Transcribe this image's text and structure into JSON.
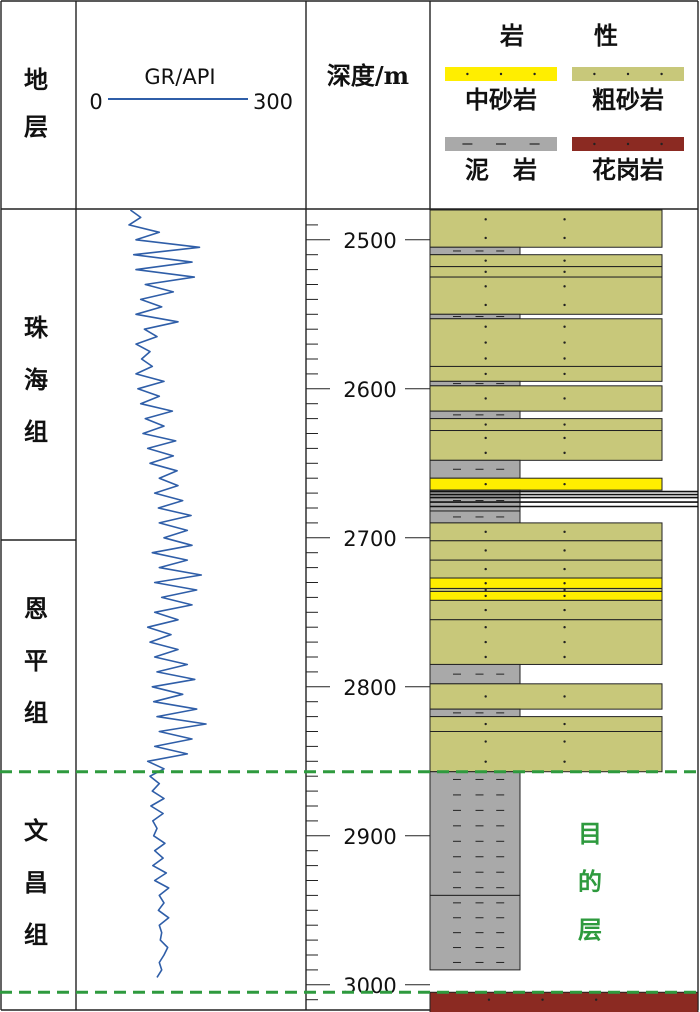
{
  "header": {
    "strata_label": [
      "地",
      "层"
    ],
    "gr_label": "GR/API",
    "gr_min": "0",
    "gr_max": "300",
    "depth_label": "深度/m",
    "lith_label": [
      "岩",
      "性"
    ]
  },
  "legend": [
    {
      "name": "中砂岩",
      "color": "#ffee00",
      "pattern": "dots"
    },
    {
      "name": "粗砂岩",
      "color": "#c8c87a",
      "pattern": "dots"
    },
    {
      "name": "泥　岩",
      "color": "#a9a9a9",
      "pattern": "dashes"
    },
    {
      "name": "花岗岩",
      "color": "#8b2a22",
      "pattern": "dots"
    }
  ],
  "formations": [
    {
      "name": [
        "珠",
        "海",
        "组"
      ],
      "top": 2480,
      "bottom": 2707
    },
    {
      "name": [
        "恩",
        "平",
        "组"
      ],
      "top": 2707,
      "bottom": 2857
    },
    {
      "name": [
        "文",
        "昌",
        "组"
      ],
      "top": 2857,
      "bottom": 3005
    }
  ],
  "depth_axis": {
    "ticks": [
      "2500",
      "2600",
      "2700",
      "2800",
      "2900",
      "3000"
    ],
    "unit": "m",
    "range": [
      2480,
      3025
    ]
  },
  "boundaries": [
    2857,
    3005
  ],
  "target_label": [
    "目",
    "的",
    "层"
  ],
  "chart_data": {
    "type": "line",
    "title": "",
    "xlabel": "GR/API",
    "ylabel": "深度/m",
    "xlim": [
      0,
      300
    ],
    "ylim": [
      2480,
      3025
    ],
    "series": [
      {
        "name": "GR",
        "depth": [
          2480,
          2485,
          2490,
          2495,
          2500,
          2505,
          2510,
          2515,
          2520,
          2525,
          2530,
          2535,
          2540,
          2545,
          2550,
          2555,
          2560,
          2565,
          2570,
          2575,
          2580,
          2585,
          2590,
          2595,
          2600,
          2605,
          2610,
          2615,
          2620,
          2625,
          2630,
          2635,
          2640,
          2645,
          2650,
          2655,
          2660,
          2665,
          2670,
          2675,
          2680,
          2685,
          2690,
          2695,
          2700,
          2705,
          2710,
          2715,
          2720,
          2725,
          2730,
          2735,
          2740,
          2745,
          2750,
          2755,
          2760,
          2765,
          2770,
          2775,
          2780,
          2785,
          2790,
          2795,
          2800,
          2805,
          2810,
          2815,
          2820,
          2825,
          2830,
          2835,
          2840,
          2845,
          2850,
          2855,
          2860,
          2865,
          2870,
          2875,
          2880,
          2885,
          2890,
          2895,
          2900,
          2905,
          2910,
          2915,
          2920,
          2925,
          2930,
          2935,
          2940,
          2945,
          2950,
          2955,
          2960,
          2965,
          2970,
          2975,
          2980,
          2985,
          2990,
          2995
        ],
        "gr": [
          48,
          70,
          45,
          110,
          60,
          196,
          55,
          180,
          60,
          185,
          80,
          140,
          70,
          115,
          60,
          150,
          78,
          105,
          60,
          90,
          72,
          95,
          60,
          120,
          64,
          110,
          70,
          138,
          80,
          120,
          75,
          145,
          85,
          140,
          90,
          148,
          110,
          150,
          100,
          160,
          108,
          178,
          110,
          170,
          120,
          180,
          95,
          170,
          110,
          200,
          100,
          190,
          115,
          180,
          100,
          150,
          85,
          135,
          90,
          150,
          100,
          170,
          105,
          186,
          95,
          160,
          98,
          190,
          105,
          210,
          110,
          180,
          100,
          170,
          85,
          120,
          90,
          110,
          95,
          120,
          92,
          118,
          96,
          105,
          98,
          122,
          100,
          118,
          96,
          125,
          100,
          130,
          110,
          120,
          108,
          130,
          110,
          115,
          112,
          128,
          120,
          110,
          115,
          105
        ]
      }
    ]
  },
  "lithology": [
    {
      "top": 2480,
      "bottom": 2505,
      "rock": "粗砂岩"
    },
    {
      "top": 2505,
      "bottom": 2510,
      "rock": "泥岩"
    },
    {
      "top": 2510,
      "bottom": 2518,
      "rock": "粗砂岩"
    },
    {
      "top": 2518,
      "bottom": 2525,
      "rock": "粗砂岩"
    },
    {
      "top": 2525,
      "bottom": 2550,
      "rock": "粗砂岩"
    },
    {
      "top": 2550,
      "bottom": 2553,
      "rock": "泥岩"
    },
    {
      "top": 2553,
      "bottom": 2585,
      "rock": "粗砂岩"
    },
    {
      "top": 2585,
      "bottom": 2595,
      "rock": "粗砂岩"
    },
    {
      "top": 2595,
      "bottom": 2598,
      "rock": "泥岩"
    },
    {
      "top": 2598,
      "bottom": 2615,
      "rock": "粗砂岩"
    },
    {
      "top": 2615,
      "bottom": 2620,
      "rock": "泥岩"
    },
    {
      "top": 2620,
      "bottom": 2628,
      "rock": "粗砂岩"
    },
    {
      "top": 2628,
      "bottom": 2648,
      "rock": "粗砂岩"
    },
    {
      "top": 2648,
      "bottom": 2660,
      "rock": "泥岩"
    },
    {
      "top": 2660,
      "bottom": 2668,
      "rock": "中砂岩"
    },
    {
      "top": 2668,
      "bottom": 2682,
      "rock": "泥岩"
    },
    {
      "top": 2682,
      "bottom": 2690,
      "rock": "泥岩"
    },
    {
      "top": 2690,
      "bottom": 2702,
      "rock": "粗砂岩"
    },
    {
      "top": 2702,
      "bottom": 2715,
      "rock": "粗砂岩"
    },
    {
      "top": 2715,
      "bottom": 2727,
      "rock": "粗砂岩"
    },
    {
      "top": 2727,
      "bottom": 2734,
      "rock": "中砂岩"
    },
    {
      "top": 2734,
      "bottom": 2736,
      "rock": "粗砂岩"
    },
    {
      "top": 2736,
      "bottom": 2742,
      "rock": "中砂岩"
    },
    {
      "top": 2742,
      "bottom": 2755,
      "rock": "粗砂岩"
    },
    {
      "top": 2755,
      "bottom": 2785,
      "rock": "粗砂岩"
    },
    {
      "top": 2785,
      "bottom": 2798,
      "rock": "泥岩"
    },
    {
      "top": 2798,
      "bottom": 2815,
      "rock": "粗砂岩"
    },
    {
      "top": 2815,
      "bottom": 2820,
      "rock": "泥岩"
    },
    {
      "top": 2820,
      "bottom": 2830,
      "rock": "粗砂岩"
    },
    {
      "top": 2830,
      "bottom": 2857,
      "rock": "粗砂岩"
    },
    {
      "top": 2857,
      "bottom": 2940,
      "rock": "泥岩"
    },
    {
      "top": 2940,
      "bottom": 2990,
      "rock": "泥岩"
    },
    {
      "top": 3005,
      "bottom": 3025,
      "rock": "花岗岩"
    }
  ]
}
